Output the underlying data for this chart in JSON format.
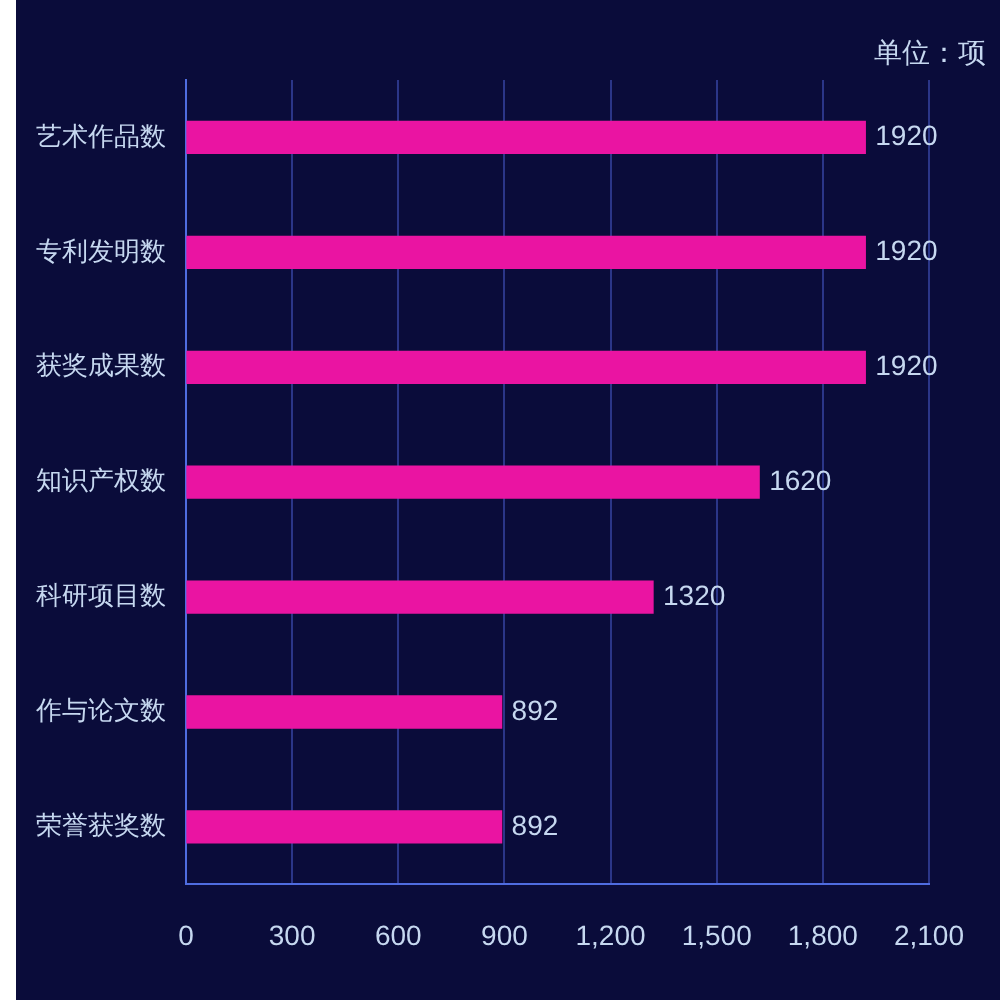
{
  "chart_data": {
    "type": "bar",
    "orientation": "horizontal",
    "categories": [
      "艺术作品数",
      "专利发明数",
      "获奖成果数",
      "知识产权数",
      "科研项目数",
      "作与论文数",
      "荣誉获奖数"
    ],
    "values": [
      1920,
      1920,
      1920,
      1620,
      1320,
      892,
      892
    ],
    "color": "#ea14a2",
    "xlim": [
      0,
      2100
    ],
    "xticks": [
      0,
      300,
      600,
      900,
      {
        "value": 1200,
        "label": "1,200"
      },
      {
        "value": 1500,
        "label": "1,500"
      },
      {
        "value": 1800,
        "label": "1,800"
      },
      {
        "value": 2100,
        "label": "2,100"
      }
    ],
    "grid": "x",
    "data_labels": true,
    "annotations": [
      "单位：项"
    ]
  }
}
